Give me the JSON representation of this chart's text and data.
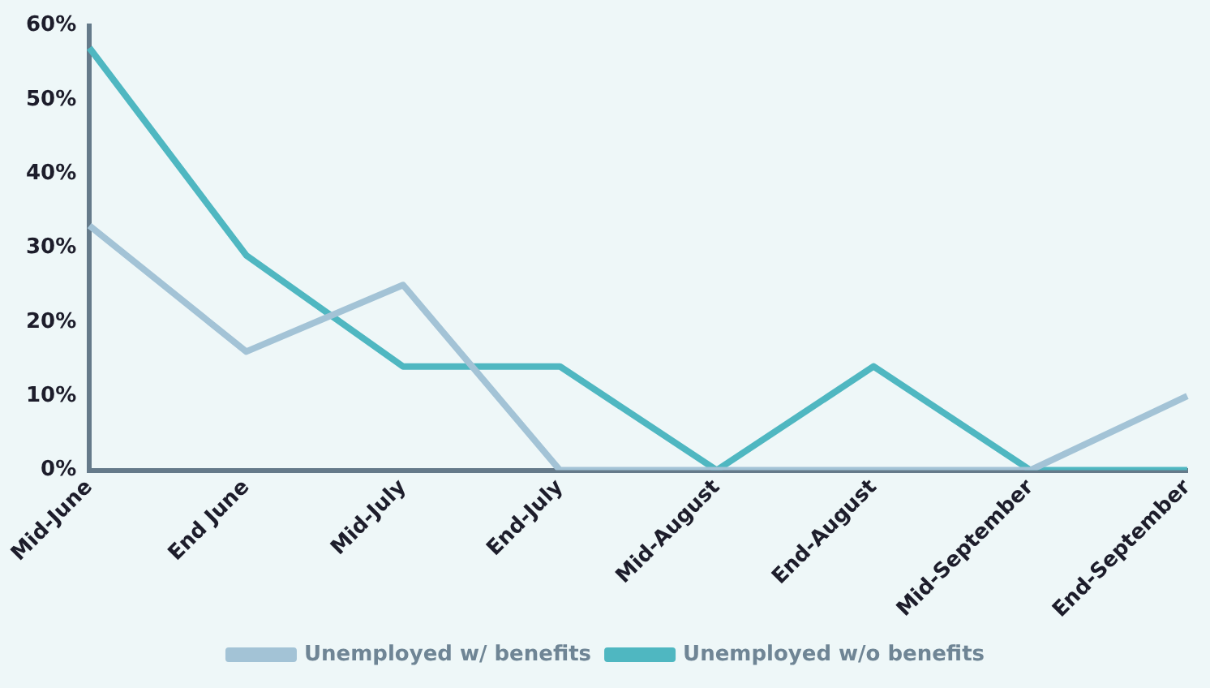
{
  "chart_data": {
    "type": "line",
    "categories": [
      "Mid-June",
      "End June",
      "Mid-July",
      "End-July",
      "Mid-August",
      "End-August",
      "Mid-September",
      "End-September"
    ],
    "series": [
      {
        "name": "Unemployed w/ benefits",
        "color": "#a3c3d6",
        "values": [
          33,
          16,
          25,
          0,
          0,
          0,
          0,
          10
        ]
      },
      {
        "name": "Unemployed w/o benefits",
        "color": "#4fb7c1",
        "values": [
          57,
          29,
          14,
          14,
          0,
          14,
          0,
          0
        ]
      }
    ],
    "ylim": [
      0,
      60
    ],
    "yticks": [
      {
        "value": 0,
        "label": "0%"
      },
      {
        "value": 10,
        "label": "10%"
      },
      {
        "value": 20,
        "label": "20%"
      },
      {
        "value": 30,
        "label": "30%"
      },
      {
        "value": 40,
        "label": "40%"
      },
      {
        "value": 50,
        "label": "50%"
      },
      {
        "value": 60,
        "label": "60%"
      }
    ],
    "grid": false,
    "legend": "bottom",
    "marker": "none",
    "line_style": "solid"
  }
}
